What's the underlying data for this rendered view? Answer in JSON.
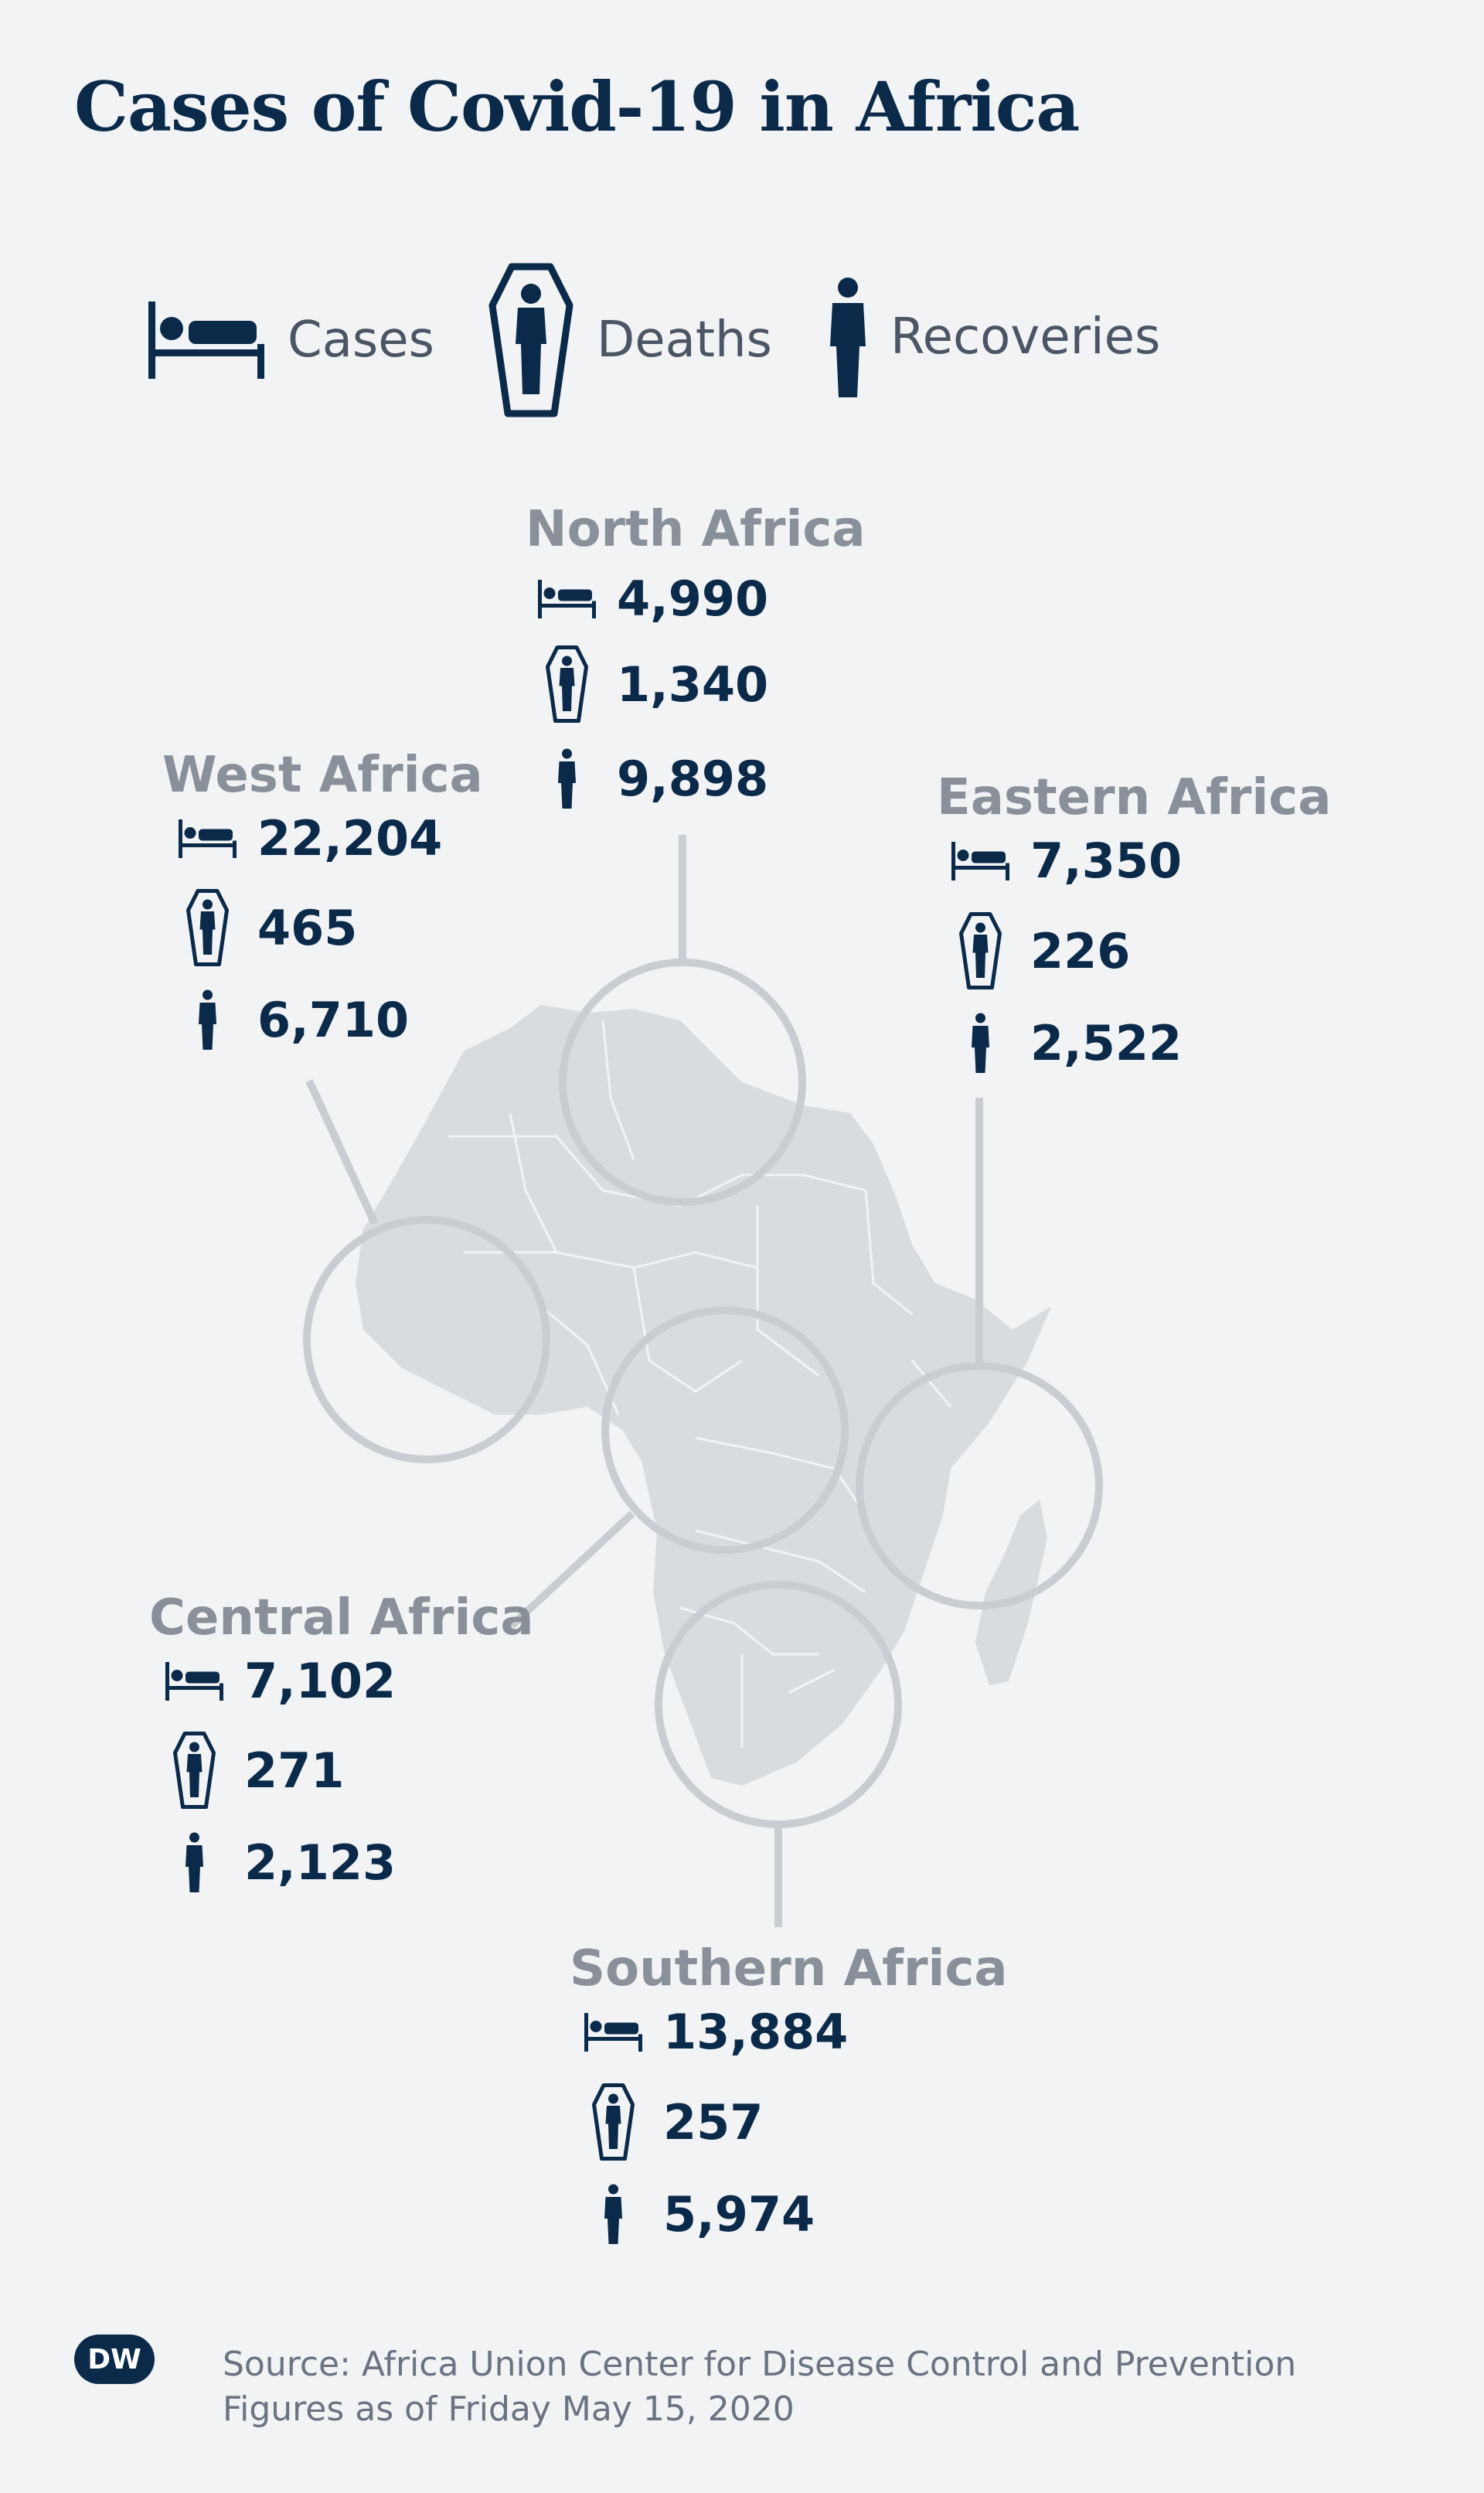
{
  "title": "Cases of Covid-19 in Africa",
  "legend": [
    {
      "icon": "bed-icon",
      "label": "Cases"
    },
    {
      "icon": "coffin-icon",
      "label": "Deaths"
    },
    {
      "icon": "person-icon",
      "label": "Recoveries"
    }
  ],
  "regions": {
    "north": {
      "name": "North Africa",
      "cases": "4,990",
      "deaths": "1,340",
      "recoveries": "9,898"
    },
    "west": {
      "name": "West Africa",
      "cases": "22,204",
      "deaths": "465",
      "recoveries": "6,710"
    },
    "eastern": {
      "name": "Eastern Africa",
      "cases": "7,350",
      "deaths": "226",
      "recoveries": "2,522"
    },
    "central": {
      "name": "Central Africa",
      "cases": "7,102",
      "deaths": "271",
      "recoveries": "2,123"
    },
    "southern": {
      "name": "Southern Africa",
      "cases": "13,884",
      "deaths": "257",
      "recoveries": "5,974"
    }
  },
  "footer": {
    "logo": "DW",
    "source": "Source: Africa Union Center for Disease Control and Prevention",
    "date": "Figures as of Friday May 15, 2020"
  },
  "colors": {
    "navy": "#0b2a4a",
    "grey_text": "#8a9099",
    "map": "#d9dcdf",
    "circle": "#c9cdd2"
  }
}
